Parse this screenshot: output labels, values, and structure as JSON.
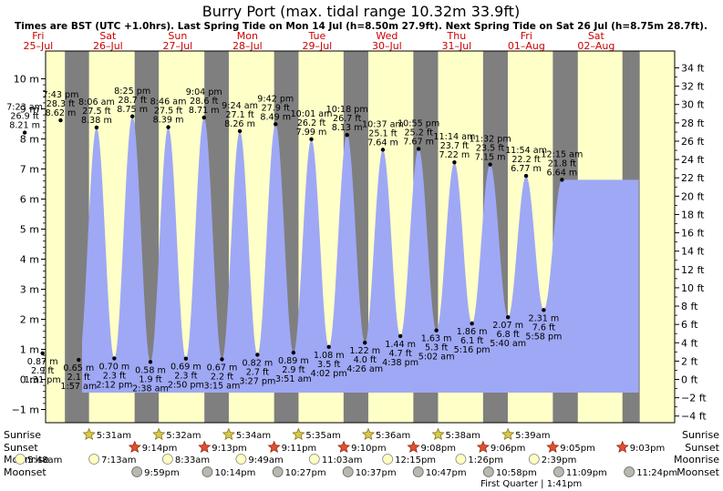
{
  "header": {
    "title": "Burry Port (max. tidal range 10.32m 33.9ft)",
    "subtitle": "Times are BST (UTC +1.0hrs). Last Spring Tide on Mon 14 Jul (h=8.50m 27.9ft). Next Spring Tide on Sat 26 Jul (h=8.75m 28.7ft)."
  },
  "days": [
    {
      "dow": "Fri",
      "date": "25–Jul"
    },
    {
      "dow": "Sat",
      "date": "26–Jul"
    },
    {
      "dow": "Sun",
      "date": "27–Jul"
    },
    {
      "dow": "Mon",
      "date": "28–Jul"
    },
    {
      "dow": "Tue",
      "date": "29–Jul"
    },
    {
      "dow": "Wed",
      "date": "30–Jul"
    },
    {
      "dow": "Thu",
      "date": "31–Jul"
    },
    {
      "dow": "Fri",
      "date": "01–Aug"
    },
    {
      "dow": "Sat",
      "date": "02–Aug"
    }
  ],
  "colors": {
    "day": "#ffffc8",
    "night": "#7f7f7f",
    "water": "#9fa8f5",
    "day_label": "#cc0000",
    "text": "#000000"
  },
  "chart_data": {
    "type": "area",
    "title": "Burry Port (max. tidal range 10.32m 33.9ft)",
    "x_unit": "hours from 00:00 Fri 25 Jul (BST)",
    "y_left_label_unit": "m",
    "y_right_label_unit": "ft",
    "ylim_m": [
      -1.6,
      10.7
    ],
    "yticks_left": [
      "−1 m",
      "0 m",
      "1 m",
      "2 m",
      "3 m",
      "4 m",
      "5 m",
      "6 m",
      "7 m",
      "8 m",
      "9 m",
      "10 m"
    ],
    "yticks_right": [
      "−4 ft",
      "−2 ft",
      "0 ft",
      "2 ft",
      "4 ft",
      "6 ft",
      "8 ft",
      "10 ft",
      "12 ft",
      "14 ft",
      "16 ft",
      "18 ft",
      "20 ft",
      "22 ft",
      "24 ft",
      "26 ft",
      "28 ft",
      "30 ft",
      "32 ft",
      "34 ft"
    ],
    "night_bands_hours": [
      [
        21.2,
        29.5
      ],
      [
        45.2,
        53.5
      ],
      [
        69.2,
        77.6
      ],
      [
        93.2,
        101.6
      ],
      [
        117.1,
        125.6
      ],
      [
        141.1,
        149.6
      ],
      [
        165.1,
        173.6
      ],
      [
        189.1,
        197.7
      ],
      [
        213.05,
        219.0
      ]
    ],
    "tides": [
      {
        "type": "high",
        "time": "7:23 am",
        "ft": "26.9 ft",
        "m": "8.21 m",
        "t": 7.38,
        "h": 8.21
      },
      {
        "type": "low",
        "time": "1:31 pm",
        "ft": "2.9 ft",
        "m": "0.87 m",
        "t": 13.52,
        "h": 0.87
      },
      {
        "type": "high",
        "time": "7:43 pm",
        "ft": "28.3 ft",
        "m": "8.62 m",
        "t": 19.72,
        "h": 8.62
      },
      {
        "type": "low",
        "time": "1:57 am",
        "ft": "2.1 ft",
        "m": "0.65 m",
        "t": 25.95,
        "h": 0.65
      },
      {
        "type": "high",
        "time": "8:06 am",
        "ft": "27.5 ft",
        "m": "8.38 m",
        "t": 32.1,
        "h": 8.38
      },
      {
        "type": "low",
        "time": "2:12 pm",
        "ft": "2.3 ft",
        "m": "0.70 m",
        "t": 38.2,
        "h": 0.7
      },
      {
        "type": "high",
        "time": "8:25 pm",
        "ft": "28.7 ft",
        "m": "8.75 m",
        "t": 44.42,
        "h": 8.75
      },
      {
        "type": "low",
        "time": "2:38 am",
        "ft": "1.9 ft",
        "m": "0.58 m",
        "t": 50.63,
        "h": 0.58
      },
      {
        "type": "high",
        "time": "8:46 am",
        "ft": "27.5 ft",
        "m": "8.39 m",
        "t": 56.77,
        "h": 8.39
      },
      {
        "type": "low",
        "time": "2:50 pm",
        "ft": "2.3 ft",
        "m": "0.69 m",
        "t": 62.83,
        "h": 0.69
      },
      {
        "type": "high",
        "time": "9:04 pm",
        "ft": "28.6 ft",
        "m": "8.71 m",
        "t": 69.07,
        "h": 8.71
      },
      {
        "type": "low",
        "time": "3:15 am",
        "ft": "2.2 ft",
        "m": "0.67 m",
        "t": 75.25,
        "h": 0.67
      },
      {
        "type": "high",
        "time": "9:24 am",
        "ft": "27.1 ft",
        "m": "8.26 m",
        "t": 81.4,
        "h": 8.26
      },
      {
        "type": "low",
        "time": "3:27 pm",
        "ft": "2.7 ft",
        "m": "0.82 m",
        "t": 87.45,
        "h": 0.82
      },
      {
        "type": "high",
        "time": "9:42 pm",
        "ft": "27.9 ft",
        "m": "8.49 m",
        "t": 93.7,
        "h": 8.49
      },
      {
        "type": "low",
        "time": "3:51 am",
        "ft": "2.9 ft",
        "m": "0.89 m",
        "t": 99.85,
        "h": 0.89
      },
      {
        "type": "high",
        "time": "10:01 am",
        "ft": "26.2 ft",
        "m": "7.99 m",
        "t": 106.02,
        "h": 7.99
      },
      {
        "type": "low",
        "time": "4:02 pm",
        "ft": "3.5 ft",
        "m": "1.08 m",
        "t": 112.03,
        "h": 1.08
      },
      {
        "type": "high",
        "time": "10:18 pm",
        "ft": "26.7 ft",
        "m": "8.13 m",
        "t": 118.3,
        "h": 8.13
      },
      {
        "type": "low",
        "time": "4:26 am",
        "ft": "4.0 ft",
        "m": "1.22 m",
        "t": 124.43,
        "h": 1.22
      },
      {
        "type": "high",
        "time": "10:37 am",
        "ft": "25.1 ft",
        "m": "7.64 m",
        "t": 130.62,
        "h": 7.64
      },
      {
        "type": "low",
        "time": "4:38 pm",
        "ft": "4.7 ft",
        "m": "1.44 m",
        "t": 136.63,
        "h": 1.44
      },
      {
        "type": "high",
        "time": "10:55 pm",
        "ft": "25.2 ft",
        "m": "7.67 m",
        "t": 142.92,
        "h": 7.67
      },
      {
        "type": "low",
        "time": "5:02 am",
        "ft": "5.3 ft",
        "m": "1.63 m",
        "t": 149.03,
        "h": 1.63
      },
      {
        "type": "high",
        "time": "11:14 am",
        "ft": "23.7 ft",
        "m": "7.22 m",
        "t": 155.23,
        "h": 7.22
      },
      {
        "type": "low",
        "time": "5:16 pm",
        "ft": "6.1 ft",
        "m": "1.86 m",
        "t": 161.27,
        "h": 1.86
      },
      {
        "type": "high",
        "time": "11:32 pm",
        "ft": "23.5 ft",
        "m": "7.15 m",
        "t": 167.53,
        "h": 7.15
      },
      {
        "type": "low",
        "time": "5:40 am",
        "ft": "6.8 ft",
        "m": "2.07 m",
        "t": 173.67,
        "h": 2.07
      },
      {
        "type": "high",
        "time": "11:54 am",
        "ft": "22.2 ft",
        "m": "6.77 m",
        "t": 179.9,
        "h": 6.77
      },
      {
        "type": "low",
        "time": "5:58 pm",
        "ft": "7.6 ft",
        "m": "2.31 m",
        "t": 185.97,
        "h": 2.31
      },
      {
        "type": "high",
        "time": "12:15 am",
        "ft": "21.8 ft",
        "m": "6.64 m",
        "t": 192.25,
        "h": 6.64
      }
    ]
  },
  "astro": {
    "row_labels": [
      "Sunrise",
      "Sunset",
      "Moonrise",
      "Moonset"
    ],
    "sunrise": [
      {
        "t": 29.52,
        "time": "5:31am"
      },
      {
        "t": 53.53,
        "time": "5:32am"
      },
      {
        "t": 77.57,
        "time": "5:34am"
      },
      {
        "t": 101.58,
        "time": "5:35am"
      },
      {
        "t": 125.6,
        "time": "5:36am"
      },
      {
        "t": 149.63,
        "time": "5:38am"
      },
      {
        "t": 173.65,
        "time": "5:39am"
      }
    ],
    "sunset": [
      {
        "t": 45.23,
        "time": "9:14pm"
      },
      {
        "t": 69.22,
        "time": "9:13pm"
      },
      {
        "t": 93.18,
        "time": "9:11pm"
      },
      {
        "t": 117.17,
        "time": "9:10pm"
      },
      {
        "t": 141.13,
        "time": "9:08pm"
      },
      {
        "t": 165.1,
        "time": "9:06pm"
      },
      {
        "t": 189.08,
        "time": "9:05pm"
      },
      {
        "t": 213.05,
        "time": "9:03pm"
      }
    ],
    "moonrise": [
      {
        "t": 5.8,
        "time": "5:48am"
      },
      {
        "t": 31.22,
        "time": "7:13am"
      },
      {
        "t": 56.55,
        "time": "8:33am"
      },
      {
        "t": 81.82,
        "time": "9:49am"
      },
      {
        "t": 107.05,
        "time": "11:03am"
      },
      {
        "t": 132.25,
        "time": "12:15pm"
      },
      {
        "t": 157.43,
        "time": "1:26pm"
      },
      {
        "t": 182.65,
        "time": "2:39pm"
      }
    ],
    "moonset": [
      {
        "t": 45.98,
        "time": "9:59pm"
      },
      {
        "t": 70.23,
        "time": "10:14pm"
      },
      {
        "t": 94.45,
        "time": "10:27pm"
      },
      {
        "t": 118.62,
        "time": "10:37pm"
      },
      {
        "t": 142.78,
        "time": "10:47pm"
      },
      {
        "t": 166.97,
        "time": "10:58pm"
      },
      {
        "t": 191.15,
        "time": "11:09pm"
      },
      {
        "t": 215.4,
        "time": "11:24pm"
      }
    ],
    "moon_phase": {
      "t": 181.68,
      "text": "First Quarter | 1:41pm"
    }
  }
}
